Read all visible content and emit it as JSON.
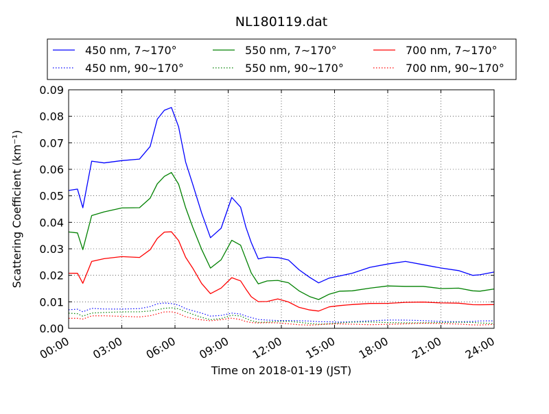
{
  "chart_data": {
    "type": "line",
    "title": "NL180119.dat",
    "xlabel": "Time on 2018-01-19 (JST)",
    "ylabel": "Scattering Coefficient (km⁻¹)",
    "xlim": [
      0,
      24
    ],
    "ylim": [
      0,
      0.09
    ],
    "x_ticks": [
      0,
      3,
      6,
      9,
      12,
      15,
      18,
      21,
      24
    ],
    "x_tick_labels": [
      "00:00",
      "03:00",
      "06:00",
      "09:00",
      "12:00",
      "15:00",
      "18:00",
      "21:00",
      "24:00"
    ],
    "y_ticks": [
      0,
      0.01,
      0.02,
      0.03,
      0.04,
      0.05,
      0.06,
      0.07,
      0.08,
      0.09
    ],
    "y_tick_labels": [
      "0.00",
      "0.01",
      "0.02",
      "0.03",
      "0.04",
      "0.05",
      "0.06",
      "0.07",
      "0.08",
      "0.09"
    ],
    "grid": true,
    "legend_position": "top, above plot",
    "x": [
      0,
      0.5,
      0.8,
      1.3,
      2,
      3,
      4,
      4.6,
      5,
      5.4,
      5.8,
      6.2,
      6.6,
      7,
      7.5,
      8,
      8.6,
      9.2,
      9.7,
      10,
      10.3,
      10.7,
      11.2,
      11.8,
      12.4,
      13,
      13.6,
      14.1,
      14.7,
      15.3,
      16,
      17,
      18,
      19,
      20,
      21,
      22,
      22.8,
      23.2,
      24
    ],
    "series": [
      {
        "name": "450 nm, 7∼170°",
        "color": "#0000ff",
        "style": "solid",
        "values": [
          0.052,
          0.052,
          0.045,
          0.063,
          0.063,
          0.064,
          0.064,
          0.068,
          0.078,
          0.082,
          0.084,
          0.077,
          0.063,
          0.054,
          0.043,
          0.034,
          0.038,
          0.05,
          0.046,
          0.038,
          0.032,
          0.026,
          0.027,
          0.027,
          0.026,
          0.022,
          0.019,
          0.017,
          0.019,
          0.02,
          0.021,
          0.023,
          0.024,
          0.025,
          0.024,
          0.023,
          0.022,
          0.02,
          0.02,
          0.021
        ]
      },
      {
        "name": "550 nm, 7∼170°",
        "color": "#008000",
        "style": "solid",
        "values": [
          0.036,
          0.036,
          0.03,
          0.043,
          0.044,
          0.045,
          0.045,
          0.049,
          0.055,
          0.058,
          0.059,
          0.054,
          0.045,
          0.038,
          0.03,
          0.023,
          0.026,
          0.033,
          0.031,
          0.026,
          0.021,
          0.017,
          0.018,
          0.018,
          0.017,
          0.014,
          0.012,
          0.011,
          0.013,
          0.014,
          0.014,
          0.015,
          0.016,
          0.016,
          0.016,
          0.015,
          0.015,
          0.014,
          0.014,
          0.015
        ]
      },
      {
        "name": "700 nm, 7∼170°",
        "color": "#ff0000",
        "style": "solid",
        "values": [
          0.021,
          0.021,
          0.017,
          0.025,
          0.026,
          0.027,
          0.027,
          0.03,
          0.034,
          0.036,
          0.036,
          0.033,
          0.027,
          0.023,
          0.017,
          0.013,
          0.015,
          0.019,
          0.018,
          0.015,
          0.012,
          0.01,
          0.01,
          0.011,
          0.01,
          0.008,
          0.007,
          0.0065,
          0.008,
          0.0085,
          0.009,
          0.0095,
          0.0095,
          0.0098,
          0.0098,
          0.0095,
          0.0095,
          0.009,
          0.009,
          0.009
        ]
      },
      {
        "name": "450 nm, 90∼170°",
        "color": "#0000ff",
        "style": "dotted",
        "values": [
          0.007,
          0.007,
          0.006,
          0.0075,
          0.0075,
          0.0075,
          0.0075,
          0.008,
          0.009,
          0.0095,
          0.0095,
          0.009,
          0.0075,
          0.0065,
          0.0055,
          0.0045,
          0.005,
          0.006,
          0.0055,
          0.0045,
          0.0038,
          0.0032,
          0.0032,
          0.0032,
          0.0031,
          0.0028,
          0.0025,
          0.0023,
          0.0025,
          0.0026,
          0.0027,
          0.0028,
          0.0029,
          0.0029,
          0.0029,
          0.0028,
          0.0027,
          0.0026,
          0.0026,
          0.0026
        ]
      },
      {
        "name": "550 nm, 90∼170°",
        "color": "#008000",
        "style": "dotted",
        "values": [
          0.0055,
          0.0055,
          0.0048,
          0.006,
          0.006,
          0.006,
          0.006,
          0.0065,
          0.0072,
          0.0078,
          0.0078,
          0.0072,
          0.006,
          0.0052,
          0.0043,
          0.0035,
          0.0038,
          0.0048,
          0.0044,
          0.0036,
          0.003,
          0.0025,
          0.0025,
          0.0025,
          0.0024,
          0.0021,
          0.0019,
          0.0018,
          0.0019,
          0.002,
          0.0021,
          0.0022,
          0.0022,
          0.0023,
          0.0023,
          0.0022,
          0.0021,
          0.002,
          0.002,
          0.002
        ]
      },
      {
        "name": "700 nm, 90∼170°",
        "color": "#ff0000",
        "style": "dotted",
        "values": [
          0.004,
          0.004,
          0.0035,
          0.0045,
          0.0045,
          0.0045,
          0.0045,
          0.005,
          0.0055,
          0.006,
          0.006,
          0.0055,
          0.0045,
          0.004,
          0.0033,
          0.0027,
          0.003,
          0.0037,
          0.0034,
          0.0028,
          0.0023,
          0.0019,
          0.0019,
          0.0019,
          0.0018,
          0.0016,
          0.0014,
          0.0013,
          0.0014,
          0.0015,
          0.0016,
          0.0016,
          0.0017,
          0.0017,
          0.0017,
          0.0016,
          0.0016,
          0.0015,
          0.0015,
          0.0015
        ]
      }
    ],
    "legend_order": [
      0,
      1,
      2,
      3,
      4,
      5
    ]
  }
}
